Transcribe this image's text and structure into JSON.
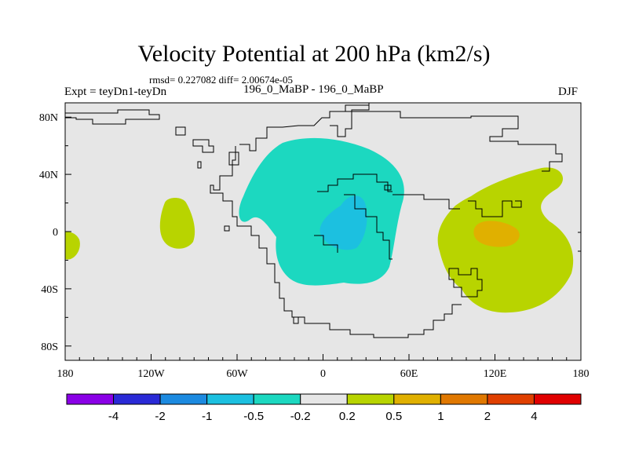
{
  "title": "Velocity Potential at 200 hPa (km2/s)",
  "stats": "rmsd= 0.227082 diff= 2.00674e-05",
  "left_label": "Expt = teyDn1-teyDn",
  "center_label": "196_0_MaBP - 196_0_MaBP",
  "right_label": "DJF",
  "map": {
    "background_color": "#e6e6e6",
    "x_ticks": [
      "180",
      "120W",
      "60W",
      "0",
      "60E",
      "120E",
      "180"
    ],
    "y_ticks": [
      "80N",
      "40N",
      "0",
      "40S",
      "80S"
    ]
  },
  "colorbar": {
    "colors": [
      "#8a00e6",
      "#2a2ad6",
      "#1c8ae0",
      "#1cc0e0",
      "#1cd8c0",
      "#e6e6e6",
      "#b8d400",
      "#e0b000",
      "#e07800",
      "#e04000",
      "#e00000"
    ],
    "labels": [
      "-4",
      "-2",
      "-1",
      "-0.5",
      "-0.2",
      "0.2",
      "0.5",
      "1",
      "2",
      "4"
    ]
  }
}
